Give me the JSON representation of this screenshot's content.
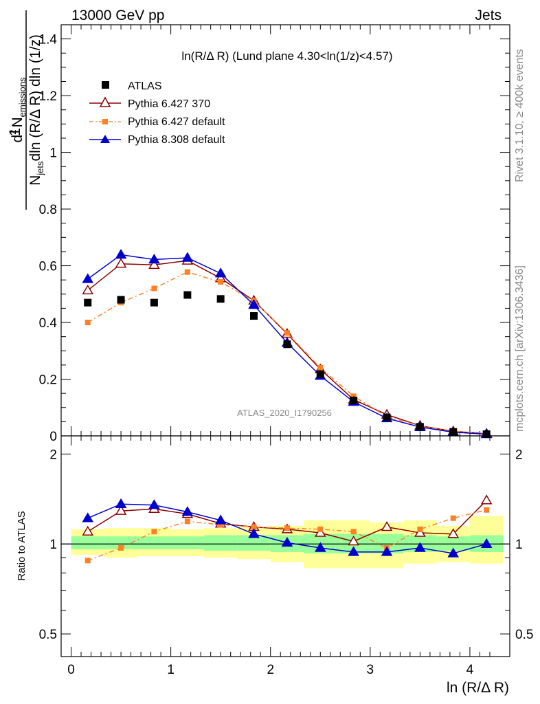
{
  "header": {
    "left": "13000 GeV pp",
    "right": "Jets"
  },
  "side": {
    "rivet": "Rivet 3.1.10, ≥ 400k events",
    "mcplots": "mcplots.cern.ch [arXiv:1306.3436]"
  },
  "plot_title": "ln(R/Δ R) (Lund plane 4.30<ln(1/z)<4.57)",
  "watermark": "ATLAS_2020_I1790256",
  "ylabel_main": {
    "one": "1",
    "num_a": "d",
    "num_sup": "2",
    "num_b": "N",
    "num_sub": "emissions",
    "den_a": "N",
    "den_sub": "jets",
    "den_b": "dln (R/Δ R) dln (1/z)"
  },
  "ylabel_ratio": "Ratio to ATLAS",
  "xlabel": "ln (R/Δ R)",
  "colors": {
    "atlas": "#000000",
    "py6_370": "#8b0000",
    "py6_default": "#ff7f24",
    "py8": "#0000cc",
    "band_inner": "#99ff99",
    "band_outer": "#ffff99"
  },
  "chart_data": [
    {
      "type": "scatter",
      "panel": "main",
      "x": [
        0.167,
        0.5,
        0.833,
        1.167,
        1.5,
        1.833,
        2.167,
        2.5,
        2.833,
        3.167,
        3.5,
        3.833,
        4.167
      ],
      "xlim": [
        -0.1,
        4.4
      ],
      "ylim": [
        0,
        1.45
      ],
      "yticks": [
        0,
        0.2,
        0.4,
        0.6,
        0.8,
        1,
        1.2,
        1.4
      ],
      "ytick_labels": [
        "0",
        "0.2",
        "0.4",
        "0.6",
        "0.8",
        "1",
        "1.2",
        "1.4"
      ],
      "series": [
        {
          "name": "ATLAS",
          "marker": "square",
          "values": [
            0.47,
            0.48,
            0.47,
            0.497,
            0.483,
            0.423,
            0.323,
            0.218,
            0.125,
            0.065,
            0.032,
            0.014,
            0.006
          ]
        },
        {
          "name": "Pythia 6.427 370",
          "marker": "open-triangle",
          "values": [
            0.513,
            0.607,
            0.603,
            0.618,
            0.556,
            0.477,
            0.36,
            0.235,
            0.128,
            0.075,
            0.036,
            0.016,
            0.008
          ]
        },
        {
          "name": "Pythia 6.427 default",
          "marker": "small-square",
          "values": [
            0.4,
            0.47,
            0.52,
            0.578,
            0.543,
            0.476,
            0.363,
            0.24,
            0.14,
            0.068,
            0.036,
            0.017,
            0.008
          ]
        },
        {
          "name": "Pythia 8.308 default",
          "marker": "triangle",
          "values": [
            0.553,
            0.639,
            0.622,
            0.628,
            0.573,
            0.462,
            0.328,
            0.212,
            0.12,
            0.062,
            0.031,
            0.013,
            0.006
          ]
        }
      ]
    },
    {
      "type": "line",
      "panel": "ratio",
      "ylabel": "Ratio to ATLAS",
      "xlabel": "ln (R/Δ R)",
      "x": [
        0.167,
        0.5,
        0.833,
        1.167,
        1.5,
        1.833,
        2.167,
        2.5,
        2.833,
        3.167,
        3.5,
        3.833,
        4.167
      ],
      "xticks": [
        0,
        1,
        2,
        3,
        4
      ],
      "ylim": [
        0.42,
        2.3
      ],
      "ytick_labels": [
        "0.5",
        "1",
        "2"
      ],
      "bins": [
        0,
        0.333,
        0.667,
        1,
        1.333,
        1.667,
        2,
        2.333,
        2.667,
        3,
        3.333,
        3.667,
        4,
        4.333
      ],
      "band_inner": [
        [
          0.96,
          1.06
        ],
        [
          0.96,
          1.06
        ],
        [
          0.96,
          1.06
        ],
        [
          0.96,
          1.06
        ],
        [
          0.95,
          1.07
        ],
        [
          0.95,
          1.07
        ],
        [
          0.94,
          1.07
        ],
        [
          0.93,
          1.08
        ],
        [
          0.93,
          1.08
        ],
        [
          0.93,
          1.08
        ],
        [
          0.94,
          1.07
        ],
        [
          0.95,
          1.06
        ],
        [
          0.94,
          1.07
        ]
      ],
      "band_outer": [
        [
          0.92,
          1.12
        ],
        [
          0.9,
          1.13
        ],
        [
          0.91,
          1.13
        ],
        [
          0.91,
          1.12
        ],
        [
          0.9,
          1.13
        ],
        [
          0.89,
          1.14
        ],
        [
          0.87,
          1.15
        ],
        [
          0.83,
          1.2
        ],
        [
          0.83,
          1.2
        ],
        [
          0.83,
          1.18
        ],
        [
          0.86,
          1.2
        ],
        [
          0.87,
          1.15
        ],
        [
          0.86,
          1.24
        ]
      ],
      "series": [
        {
          "name": "Pythia 6.427 370",
          "values": [
            1.1,
            1.29,
            1.31,
            1.26,
            1.17,
            1.14,
            1.12,
            1.09,
            1.02,
            1.14,
            1.09,
            1.08,
            1.4
          ]
        },
        {
          "name": "Pythia 6.427 default",
          "values": [
            0.88,
            0.97,
            1.1,
            1.19,
            1.16,
            1.14,
            1.13,
            1.12,
            1.1,
            0.97,
            1.12,
            1.22,
            1.3
          ]
        },
        {
          "name": "Pythia 8.308 default",
          "values": [
            1.22,
            1.36,
            1.35,
            1.28,
            1.2,
            1.08,
            1.01,
            0.97,
            0.94,
            0.94,
            0.97,
            0.93,
            1.0
          ]
        }
      ]
    }
  ]
}
